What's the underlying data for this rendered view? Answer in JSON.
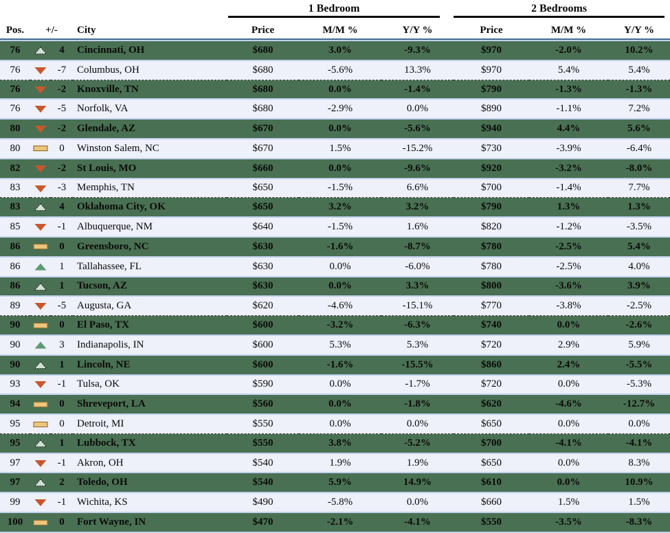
{
  "table": {
    "group_headers": [
      "1 Bedroom",
      "2 Bedrooms"
    ],
    "columns": [
      "Pos.",
      "+/-",
      "City",
      "Price",
      "M/M %",
      "Y/Y %",
      "Price",
      "M/M %",
      "Y/Y %"
    ]
  },
  "colors": {
    "green_row": "#497052",
    "light_row": "#eef0fa",
    "row_border": "#c0d0ec",
    "header_line": "#4a6a92",
    "group_underline": "#0a0a0a",
    "up_icon_solid": "#5e9a73",
    "up_icon_pale_fill": "#cde0d2",
    "up_icon_outline": "#1c1c1c",
    "down_icon": "#c8572d",
    "flat_icon_fill": "#ecc67e",
    "flat_icon_border": "#9b7330"
  },
  "icons": {
    "up": "triangle-up-icon",
    "down": "triangle-down-icon",
    "flat": "flat-rect-icon"
  },
  "chart_data": {
    "type": "table",
    "column_groups": [
      {
        "label": "1 Bedroom",
        "columns": [
          "Price",
          "M/M %",
          "Y/Y %"
        ]
      },
      {
        "label": "2 Bedrooms",
        "columns": [
          "Price",
          "M/M %",
          "Y/Y %"
        ]
      }
    ],
    "columns": [
      "Pos.",
      "+/-",
      "City",
      "1BR Price",
      "1BR M/M %",
      "1BR Y/Y %",
      "2BR Price",
      "2BR M/M %",
      "2BR Y/Y %"
    ],
    "rows": [
      {
        "pos": "76",
        "trend": "up",
        "change": "4",
        "city": "Cincinnati, OH",
        "p1": "$680",
        "m1": "3.0%",
        "y1": "-9.3%",
        "p2": "$970",
        "m2": "-2.0%",
        "y2": "10.2%",
        "shade": "green",
        "divider": false
      },
      {
        "pos": "76",
        "trend": "down",
        "change": "-7",
        "city": "Columbus, OH",
        "p1": "$680",
        "m1": "-5.6%",
        "y1": "13.3%",
        "p2": "$970",
        "m2": "5.4%",
        "y2": "5.4%",
        "shade": "light",
        "divider": true
      },
      {
        "pos": "76",
        "trend": "down",
        "change": "-2",
        "city": "Knoxville, TN",
        "p1": "$680",
        "m1": "0.0%",
        "y1": "-1.4%",
        "p2": "$790",
        "m2": "-1.3%",
        "y2": "-1.3%",
        "shade": "green",
        "divider": false
      },
      {
        "pos": "76",
        "trend": "down",
        "change": "-5",
        "city": "Norfolk, VA",
        "p1": "$680",
        "m1": "-2.9%",
        "y1": "0.0%",
        "p2": "$890",
        "m2": "-1.1%",
        "y2": "7.2%",
        "shade": "light",
        "divider": false
      },
      {
        "pos": "80",
        "trend": "down",
        "change": "-2",
        "city": "Glendale, AZ",
        "p1": "$670",
        "m1": "0.0%",
        "y1": "-5.6%",
        "p2": "$940",
        "m2": "4.4%",
        "y2": "5.6%",
        "shade": "green",
        "divider": false
      },
      {
        "pos": "80",
        "trend": "flat",
        "change": "0",
        "city": "Winston Salem, NC",
        "p1": "$670",
        "m1": "1.5%",
        "y1": "-15.2%",
        "p2": "$730",
        "m2": "-3.9%",
        "y2": "-6.4%",
        "shade": "light",
        "divider": false
      },
      {
        "pos": "82",
        "trend": "down",
        "change": "-2",
        "city": "St Louis, MO",
        "p1": "$660",
        "m1": "0.0%",
        "y1": "-9.6%",
        "p2": "$920",
        "m2": "-3.2%",
        "y2": "-8.0%",
        "shade": "green",
        "divider": false
      },
      {
        "pos": "83",
        "trend": "down",
        "change": "-3",
        "city": "Memphis, TN",
        "p1": "$650",
        "m1": "-1.5%",
        "y1": "6.6%",
        "p2": "$700",
        "m2": "-1.4%",
        "y2": "7.7%",
        "shade": "light",
        "divider": true
      },
      {
        "pos": "83",
        "trend": "up",
        "change": "4",
        "city": "Oklahoma City, OK",
        "p1": "$650",
        "m1": "3.2%",
        "y1": "3.2%",
        "p2": "$790",
        "m2": "1.3%",
        "y2": "1.3%",
        "shade": "green",
        "divider": false
      },
      {
        "pos": "85",
        "trend": "down",
        "change": "-1",
        "city": "Albuquerque, NM",
        "p1": "$640",
        "m1": "-1.5%",
        "y1": "1.6%",
        "p2": "$820",
        "m2": "-1.2%",
        "y2": "-3.5%",
        "shade": "light",
        "divider": false
      },
      {
        "pos": "86",
        "trend": "flat",
        "change": "0",
        "city": "Greensboro, NC",
        "p1": "$630",
        "m1": "-1.6%",
        "y1": "-8.7%",
        "p2": "$780",
        "m2": "-2.5%",
        "y2": "5.4%",
        "shade": "green",
        "divider": false
      },
      {
        "pos": "86",
        "trend": "up",
        "change": "1",
        "city": "Tallahassee, FL",
        "p1": "$630",
        "m1": "0.0%",
        "y1": "-6.0%",
        "p2": "$780",
        "m2": "-2.5%",
        "y2": "4.0%",
        "shade": "light",
        "divider": false
      },
      {
        "pos": "86",
        "trend": "up",
        "change": "1",
        "city": "Tucson, AZ",
        "p1": "$630",
        "m1": "0.0%",
        "y1": "3.3%",
        "p2": "$800",
        "m2": "-3.6%",
        "y2": "3.9%",
        "shade": "green",
        "divider": false
      },
      {
        "pos": "89",
        "trend": "down",
        "change": "-5",
        "city": "Augusta, GA",
        "p1": "$620",
        "m1": "-4.6%",
        "y1": "-15.1%",
        "p2": "$770",
        "m2": "-3.8%",
        "y2": "-2.5%",
        "shade": "light",
        "divider": true
      },
      {
        "pos": "90",
        "trend": "flat",
        "change": "0",
        "city": "El Paso, TX",
        "p1": "$600",
        "m1": "-3.2%",
        "y1": "-6.3%",
        "p2": "$740",
        "m2": "0.0%",
        "y2": "-2.6%",
        "shade": "green",
        "divider": false
      },
      {
        "pos": "90",
        "trend": "up",
        "change": "3",
        "city": "Indianapolis, IN",
        "p1": "$600",
        "m1": "5.3%",
        "y1": "5.3%",
        "p2": "$720",
        "m2": "2.9%",
        "y2": "5.9%",
        "shade": "light",
        "divider": false
      },
      {
        "pos": "90",
        "trend": "up",
        "change": "1",
        "city": "Lincoln, NE",
        "p1": "$600",
        "m1": "-1.6%",
        "y1": "-15.5%",
        "p2": "$860",
        "m2": "2.4%",
        "y2": "-5.5%",
        "shade": "green",
        "divider": false
      },
      {
        "pos": "93",
        "trend": "down",
        "change": "-1",
        "city": "Tulsa, OK",
        "p1": "$590",
        "m1": "0.0%",
        "y1": "-1.7%",
        "p2": "$720",
        "m2": "0.0%",
        "y2": "-5.3%",
        "shade": "light",
        "divider": false
      },
      {
        "pos": "94",
        "trend": "flat",
        "change": "0",
        "city": "Shreveport, LA",
        "p1": "$560",
        "m1": "0.0%",
        "y1": "-1.8%",
        "p2": "$620",
        "m2": "-4.6%",
        "y2": "-12.7%",
        "shade": "green",
        "divider": false
      },
      {
        "pos": "95",
        "trend": "flat",
        "change": "0",
        "city": "Detroit, MI",
        "p1": "$550",
        "m1": "0.0%",
        "y1": "0.0%",
        "p2": "$650",
        "m2": "0.0%",
        "y2": "0.0%",
        "shade": "light",
        "divider": true
      },
      {
        "pos": "95",
        "trend": "up",
        "change": "1",
        "city": "Lubbock, TX",
        "p1": "$550",
        "m1": "3.8%",
        "y1": "-5.2%",
        "p2": "$700",
        "m2": "-4.1%",
        "y2": "-4.1%",
        "shade": "green",
        "divider": false
      },
      {
        "pos": "97",
        "trend": "down",
        "change": "-1",
        "city": "Akron, OH",
        "p1": "$540",
        "m1": "1.9%",
        "y1": "1.9%",
        "p2": "$650",
        "m2": "0.0%",
        "y2": "8.3%",
        "shade": "light",
        "divider": false
      },
      {
        "pos": "97",
        "trend": "up",
        "change": "2",
        "city": "Toledo, OH",
        "p1": "$540",
        "m1": "5.9%",
        "y1": "14.9%",
        "p2": "$610",
        "m2": "0.0%",
        "y2": "10.9%",
        "shade": "green",
        "divider": false
      },
      {
        "pos": "99",
        "trend": "down",
        "change": "-1",
        "city": "Wichita, KS",
        "p1": "$490",
        "m1": "-5.8%",
        "y1": "0.0%",
        "p2": "$660",
        "m2": "1.5%",
        "y2": "1.5%",
        "shade": "light",
        "divider": false
      },
      {
        "pos": "100",
        "trend": "flat",
        "change": "0",
        "city": "Fort Wayne, IN",
        "p1": "$470",
        "m1": "-2.1%",
        "y1": "-4.1%",
        "p2": "$550",
        "m2": "-3.5%",
        "y2": "-8.3%",
        "shade": "green",
        "divider": false
      }
    ]
  }
}
